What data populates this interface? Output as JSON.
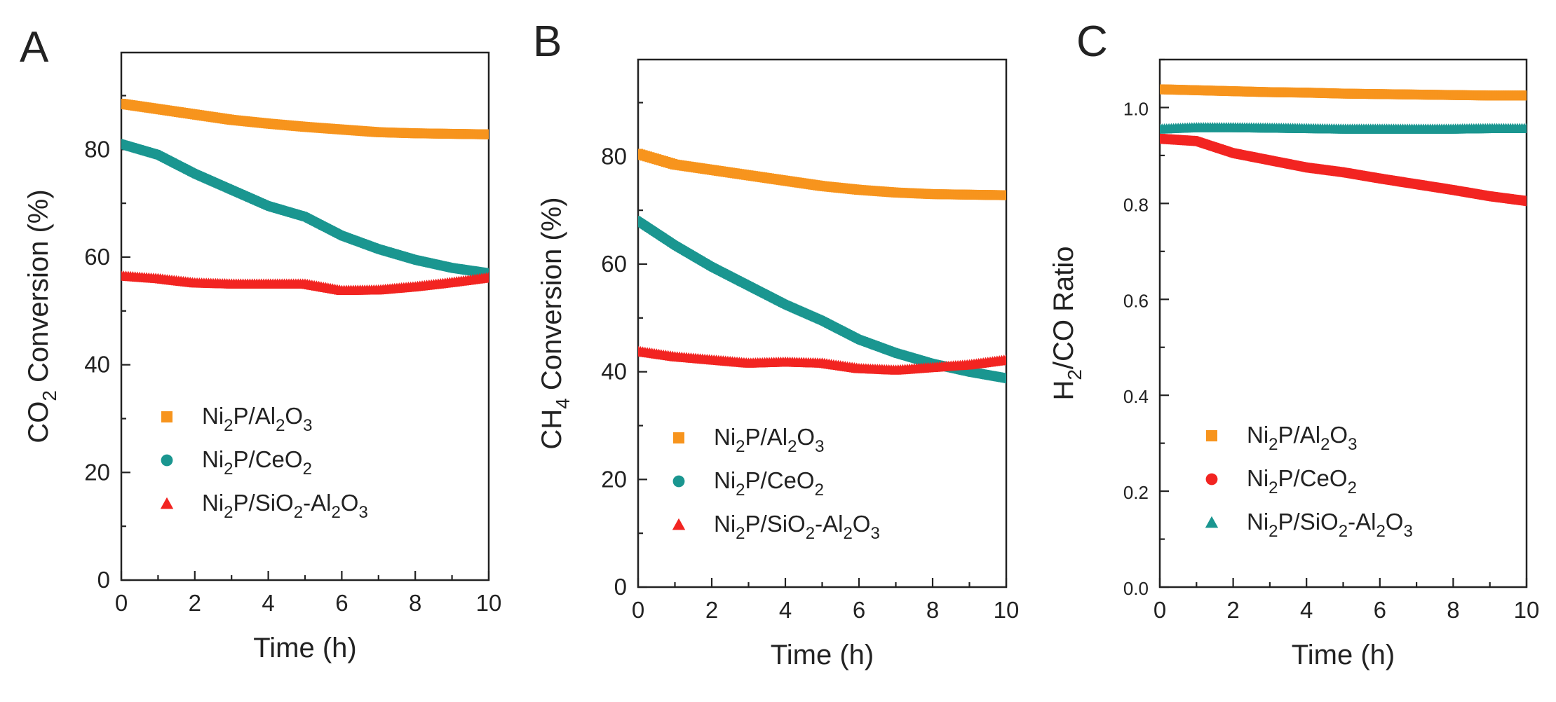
{
  "chart_data": [
    {
      "type": "scatter",
      "panel": "A",
      "xlabel": "Time (h)",
      "ylabel": "CO₂ Conversion (%)",
      "ylabel_parts": [
        "CO",
        "2",
        " Conversion (%)"
      ],
      "xlim": [
        0,
        10
      ],
      "ylim": [
        0,
        98
      ],
      "xticks": [
        0,
        2,
        4,
        6,
        8,
        10
      ],
      "yticks": [
        0,
        20,
        40,
        60,
        80
      ],
      "grid": false,
      "series": [
        {
          "name": "Ni₂P/Al₂O₃",
          "name_parts": [
            [
              "Ni"
            ],
            [
              "2",
              "sub"
            ],
            [
              "P/Al"
            ],
            [
              "2",
              "sub"
            ],
            [
              "O"
            ],
            [
              "3",
              "sub"
            ]
          ],
          "color": "#f7941d",
          "marker": "square",
          "x": [
            0,
            1,
            2,
            3,
            4,
            5,
            6,
            7,
            8,
            9,
            10
          ],
          "y": [
            88.5,
            87.5,
            86.5,
            85.5,
            84.8,
            84.2,
            83.7,
            83.2,
            83.0,
            82.9,
            82.8
          ]
        },
        {
          "name": "Ni₂P/CeO₂",
          "name_parts": [
            [
              "Ni"
            ],
            [
              "2",
              "sub"
            ],
            [
              "P/CeO"
            ],
            [
              "2",
              "sub"
            ]
          ],
          "color": "#1a9690",
          "marker": "circle",
          "x": [
            0,
            1,
            2,
            3,
            4,
            5,
            6,
            7,
            8,
            9,
            10
          ],
          "y": [
            81.0,
            79.0,
            75.5,
            72.5,
            69.5,
            67.5,
            64.0,
            61.5,
            59.5,
            58.0,
            57.0
          ]
        },
        {
          "name": "Ni₂P/SiO₂-Al₂O₃",
          "name_parts": [
            [
              "Ni"
            ],
            [
              "2",
              "sub"
            ],
            [
              "P/SiO"
            ],
            [
              "2",
              "sub"
            ],
            [
              "-Al"
            ],
            [
              "2",
              "sub"
            ],
            [
              "O"
            ],
            [
              "3",
              "sub"
            ]
          ],
          "color": "#f22421",
          "marker": "triangle",
          "x": [
            0,
            1,
            2,
            3,
            4,
            5,
            6,
            7,
            8,
            9,
            10
          ],
          "y": [
            56.5,
            56.0,
            55.2,
            55.0,
            55.0,
            55.0,
            53.8,
            53.9,
            54.5,
            55.3,
            56.2
          ]
        }
      ]
    },
    {
      "type": "scatter",
      "panel": "B",
      "xlabel": "Time (h)",
      "ylabel": "CH₄ Conversion (%)",
      "ylabel_parts": [
        "CH",
        "4",
        " Conversion (%)"
      ],
      "xlim": [
        0,
        10
      ],
      "ylim": [
        0,
        98
      ],
      "xticks": [
        0,
        2,
        4,
        6,
        8,
        10
      ],
      "yticks": [
        0,
        20,
        40,
        60,
        80
      ],
      "grid": false,
      "series": [
        {
          "name": "Ni₂P/Al₂O₃",
          "name_parts": [
            [
              "Ni"
            ],
            [
              "2",
              "sub"
            ],
            [
              "P/Al"
            ],
            [
              "2",
              "sub"
            ],
            [
              "O"
            ],
            [
              "3",
              "sub"
            ]
          ],
          "color": "#f7941d",
          "marker": "square",
          "x": [
            0,
            1,
            2,
            3,
            4,
            5,
            6,
            7,
            8,
            9,
            10
          ],
          "y": [
            80.5,
            78.5,
            77.5,
            76.5,
            75.5,
            74.5,
            73.8,
            73.3,
            73.0,
            72.9,
            72.8
          ]
        },
        {
          "name": "Ni₂P/CeO₂",
          "name_parts": [
            [
              "Ni"
            ],
            [
              "2",
              "sub"
            ],
            [
              "P/CeO"
            ],
            [
              "2",
              "sub"
            ]
          ],
          "color": "#1a9690",
          "marker": "circle",
          "x": [
            0,
            1,
            2,
            3,
            4,
            5,
            6,
            7,
            8,
            9,
            10
          ],
          "y": [
            68.0,
            63.5,
            59.5,
            56.0,
            52.5,
            49.5,
            46.0,
            43.5,
            41.5,
            40.0,
            38.8
          ]
        },
        {
          "name": "Ni₂P/SiO₂-Al₂O₃",
          "name_parts": [
            [
              "Ni"
            ],
            [
              "2",
              "sub"
            ],
            [
              "P/SiO"
            ],
            [
              "2",
              "sub"
            ],
            [
              "-Al"
            ],
            [
              "2",
              "sub"
            ],
            [
              "O"
            ],
            [
              "3",
              "sub"
            ]
          ],
          "color": "#f22421",
          "marker": "triangle",
          "x": [
            0,
            1,
            2,
            3,
            4,
            5,
            6,
            7,
            8,
            9,
            10
          ],
          "y": [
            43.8,
            42.8,
            42.2,
            41.6,
            41.8,
            41.6,
            40.6,
            40.3,
            40.8,
            41.3,
            42.2
          ]
        }
      ]
    },
    {
      "type": "scatter",
      "panel": "C",
      "xlabel": "Time (h)",
      "ylabel": "H₂/CO Ratio",
      "ylabel_parts": [
        "H",
        "2",
        "/CO Ratio"
      ],
      "xlim": [
        0,
        10
      ],
      "ylim": [
        0,
        1.1
      ],
      "xticks": [
        0,
        2,
        4,
        6,
        8,
        10
      ],
      "yticks": [
        0.0,
        0.2,
        0.4,
        0.6,
        0.8,
        1.0
      ],
      "ytick_labels": [
        "0.0",
        "0.2",
        "0.4",
        "0.6",
        "0.8",
        "1.0"
      ],
      "grid": false,
      "series": [
        {
          "name": "Ni₂P/Al₂O₃",
          "name_parts": [
            [
              "Ni"
            ],
            [
              "2",
              "sub"
            ],
            [
              "P/Al"
            ],
            [
              "2",
              "sub"
            ],
            [
              "O"
            ],
            [
              "3",
              "sub"
            ]
          ],
          "color": "#f7941d",
          "marker": "square",
          "x": [
            0,
            1,
            2,
            3,
            4,
            5,
            6,
            7,
            8,
            9,
            10
          ],
          "y": [
            1.038,
            1.036,
            1.034,
            1.032,
            1.031,
            1.029,
            1.028,
            1.027,
            1.026,
            1.025,
            1.025
          ]
        },
        {
          "name": "Ni₂P/CeO₂",
          "name_parts": [
            [
              "Ni"
            ],
            [
              "2",
              "sub"
            ],
            [
              "P/CeO"
            ],
            [
              "2",
              "sub"
            ]
          ],
          "color": "#f22421",
          "marker": "circle",
          "x": [
            0,
            1,
            2,
            3,
            4,
            5,
            6,
            7,
            8,
            9,
            10
          ],
          "y": [
            0.935,
            0.93,
            0.905,
            0.89,
            0.875,
            0.865,
            0.852,
            0.84,
            0.828,
            0.815,
            0.805
          ]
        },
        {
          "name": "Ni₂P/SiO₂-Al₂O₃",
          "name_parts": [
            [
              "Ni"
            ],
            [
              "2",
              "sub"
            ],
            [
              "P/SiO"
            ],
            [
              "2",
              "sub"
            ],
            [
              "-Al"
            ],
            [
              "2",
              "sub"
            ],
            [
              "O"
            ],
            [
              "3",
              "sub"
            ]
          ],
          "color": "#1a9690",
          "marker": "triangle",
          "x": [
            0,
            1,
            2,
            3,
            4,
            5,
            6,
            7,
            8,
            9,
            10
          ],
          "y": [
            0.955,
            0.958,
            0.958,
            0.957,
            0.956,
            0.955,
            0.955,
            0.955,
            0.955,
            0.956,
            0.956
          ]
        }
      ]
    }
  ]
}
